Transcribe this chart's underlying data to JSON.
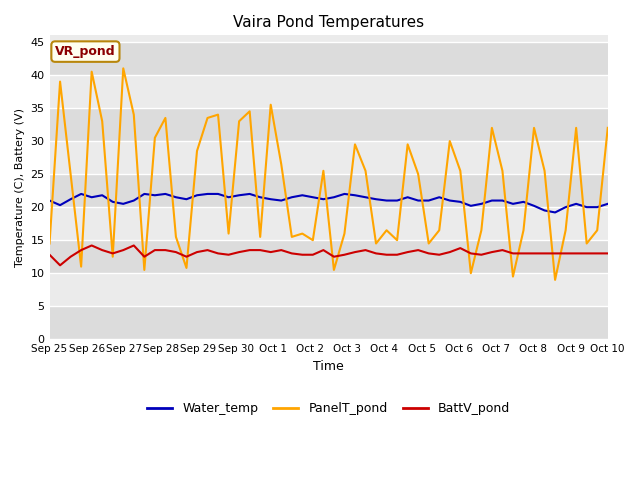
{
  "title": "Vaira Pond Temperatures",
  "xlabel": "Time",
  "ylabel": "Temperature (C), Battery (V)",
  "ylim": [
    0,
    46
  ],
  "yticks": [
    0,
    5,
    10,
    15,
    20,
    25,
    30,
    35,
    40,
    45
  ],
  "xtick_labels": [
    "Sep 25",
    "Sep 26",
    "Sep 27",
    "Sep 28",
    "Sep 29",
    "Sep 30",
    "Oct 1",
    "Oct 2",
    "Oct 3",
    "Oct 4",
    "Oct 5",
    "Oct 6",
    "Oct 7",
    "Oct 8",
    "Oct 9",
    "Oct 10"
  ],
  "annotation": "VR_pond",
  "water_color": "#0000BB",
  "panel_color": "#FFA500",
  "batt_color": "#CC0000",
  "legend_labels": [
    "Water_temp",
    "PanelT_pond",
    "BattV_pond"
  ],
  "bg_color": "#FFFFFF",
  "plot_bg_color": "#EBEBEB",
  "band_light": "#EBEBEB",
  "band_dark": "#DCDCDC",
  "grid_color": "#FFFFFF",
  "water_temp": [
    21.0,
    20.3,
    21.2,
    22.0,
    21.5,
    21.8,
    20.8,
    20.5,
    21.0,
    22.0,
    21.8,
    22.0,
    21.5,
    21.2,
    21.8,
    22.0,
    22.0,
    21.5,
    21.8,
    22.0,
    21.5,
    21.2,
    21.0,
    21.5,
    21.8,
    21.5,
    21.2,
    21.5,
    22.0,
    21.8,
    21.5,
    21.2,
    21.0,
    21.0,
    21.5,
    21.0,
    21.0,
    21.5,
    21.0,
    20.8,
    20.2,
    20.5,
    21.0,
    21.0,
    20.5,
    20.8,
    20.2,
    19.5,
    19.2,
    20.0,
    20.5,
    20.0,
    20.0,
    20.5
  ],
  "panel_temp": [
    14.5,
    39.0,
    25.0,
    11.0,
    40.5,
    33.0,
    12.5,
    41.0,
    34.0,
    10.5,
    30.5,
    33.5,
    15.5,
    10.8,
    28.5,
    33.5,
    34.0,
    16.0,
    33.0,
    34.5,
    15.5,
    35.5,
    26.5,
    15.5,
    16.0,
    15.0,
    25.5,
    10.5,
    16.0,
    29.5,
    25.5,
    14.5,
    16.5,
    15.0,
    29.5,
    25.0,
    14.5,
    16.5,
    30.0,
    25.5,
    10.0,
    16.5,
    32.0,
    25.5,
    9.5,
    16.5,
    32.0,
    25.5,
    9.0,
    16.5,
    32.0,
    14.5,
    16.5,
    32.0
  ],
  "batt_v": [
    12.8,
    11.2,
    12.5,
    13.5,
    14.2,
    13.5,
    13.0,
    13.5,
    14.2,
    12.5,
    13.5,
    13.5,
    13.2,
    12.5,
    13.2,
    13.5,
    13.0,
    12.8,
    13.2,
    13.5,
    13.5,
    13.2,
    13.5,
    13.0,
    12.8,
    12.8,
    13.5,
    12.5,
    12.8,
    13.2,
    13.5,
    13.0,
    12.8,
    12.8,
    13.2,
    13.5,
    13.0,
    12.8,
    13.2,
    13.8,
    13.0,
    12.8,
    13.2,
    13.5,
    13.0,
    13.0,
    13.0,
    13.0,
    13.0,
    13.0,
    13.0,
    13.0,
    13.0,
    13.0
  ]
}
